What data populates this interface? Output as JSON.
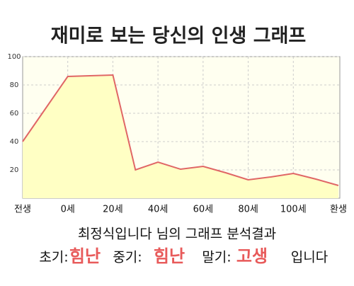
{
  "chart_data": {
    "type": "area",
    "title": "재미로 보는 당신의 인생 그래프",
    "categories": [
      "전생",
      null,
      "0세",
      null,
      "20세",
      null,
      "40세",
      null,
      "60세",
      null,
      "80세",
      null,
      "100세",
      null,
      "환생"
    ],
    "values": [
      40,
      63,
      86,
      86.5,
      87,
      20,
      25.5,
      20.5,
      22.5,
      18,
      13,
      15,
      17.5,
      13.5,
      9
    ],
    "color": "#e06666",
    "fill": "#ffffc4",
    "ylim": [
      0,
      100
    ],
    "yticks": [
      20,
      40,
      60,
      80,
      100
    ],
    "grid": true
  },
  "result": {
    "heading": "최정식입니다 님의 그래프 분석결과",
    "parts": [
      {
        "label": "초기:",
        "value": "힘난"
      },
      {
        "label": "중기:",
        "value": "힘난"
      },
      {
        "label": "말기:",
        "value": "고생"
      }
    ],
    "ending": "입니다"
  }
}
